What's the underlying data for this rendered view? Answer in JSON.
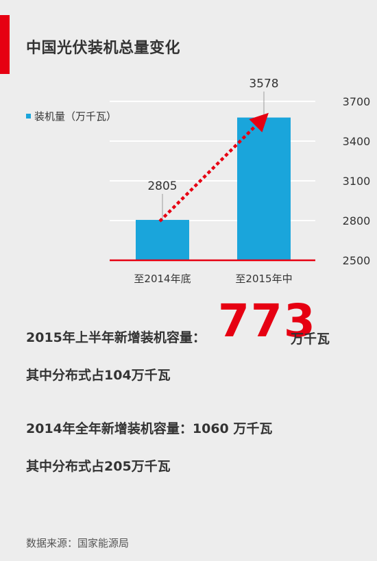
{
  "title": "中国光伏装机总量变化",
  "chart_data": {
    "type": "bar",
    "categories": [
      "至2014年底",
      "至2015年中"
    ],
    "series": [
      {
        "name": "装机量（万千瓦）",
        "values": [
          2805,
          3578
        ]
      }
    ],
    "data_labels": [
      "2805",
      "3578"
    ],
    "ylim": [
      2500,
      3700
    ],
    "yticks": [
      2500,
      2800,
      3100,
      3400,
      3700
    ],
    "y_axis_side": "right",
    "grid": true,
    "legend": "top-left",
    "bar_color": "#1aa5db",
    "baseline_color": "#e60012",
    "arrow_color": "#e60012"
  },
  "stats": {
    "line1_label": "2015年上半年新增装机容量：",
    "line1_value": "773",
    "line1_unit": "万千瓦",
    "line2": "其中分布式占104万千瓦",
    "line3": "2014年全年新增装机容量：1060 万千瓦",
    "line4": "其中分布式占205万千瓦"
  },
  "source": "数据来源：国家能源局"
}
